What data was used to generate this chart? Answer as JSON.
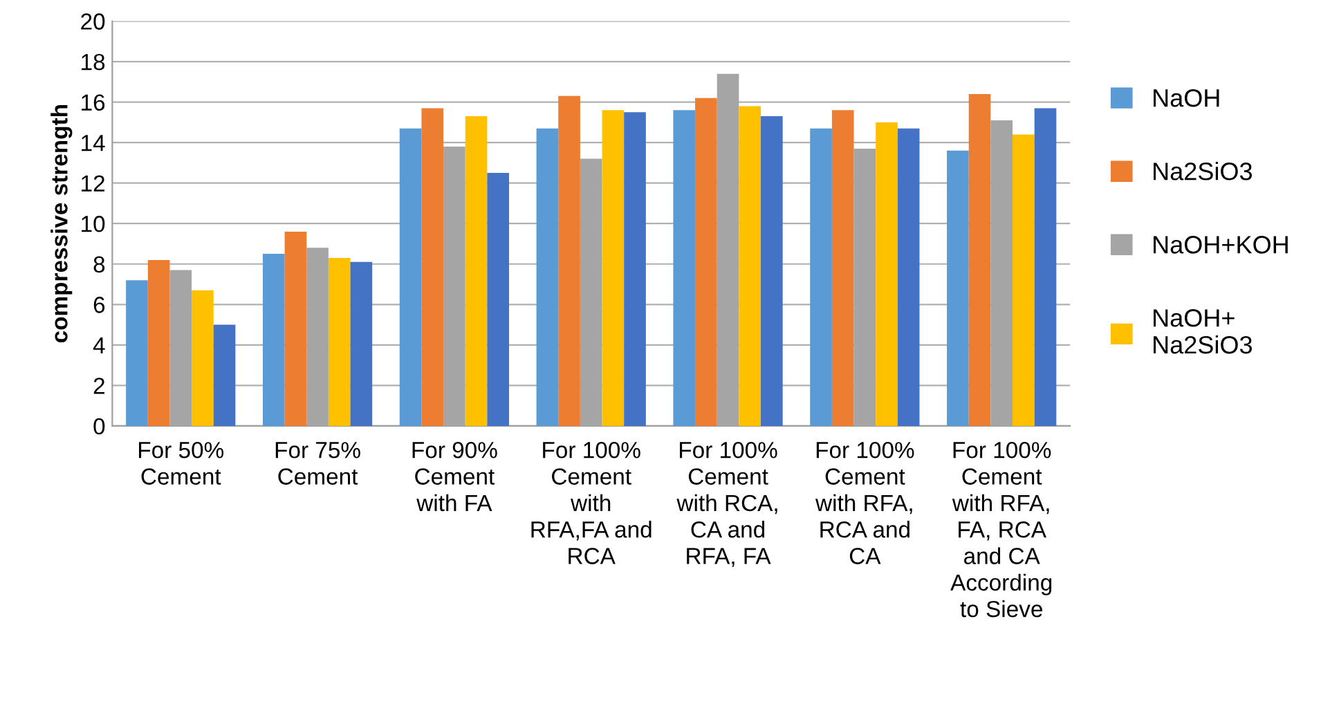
{
  "chart_data": {
    "type": "bar",
    "ylabel": "compressive strength",
    "categories": [
      "For 50%\nCement",
      "For 75%\nCement",
      "For 90%\nCement\nwith FA",
      "For 100%\nCement\nwith\nRFA,FA and\nRCA",
      "For 100%\nCement\nwith RCA,\nCA and\nRFA, FA",
      "For 100%\nCement\nwith RFA,\nRCA and\nCA",
      "For 100%\nCement\nwith RFA,\nFA, RCA\nand CA\nAccording\nto Sieve"
    ],
    "series": [
      {
        "name": "NaOH",
        "color": "#5b9bd5",
        "values": [
          7.2,
          8.5,
          14.7,
          14.7,
          15.6,
          14.7,
          13.6
        ]
      },
      {
        "name": "Na2SiO3",
        "color": "#ed7d31",
        "values": [
          8.2,
          9.6,
          15.7,
          16.3,
          16.2,
          15.6,
          16.4
        ]
      },
      {
        "name": "NaOH+KOH",
        "color": "#a5a5a5",
        "values": [
          7.7,
          8.8,
          13.8,
          13.2,
          17.4,
          13.7,
          15.1
        ]
      },
      {
        "name": "NaOH+\nNa2SiO3",
        "color": "#ffc000",
        "values": [
          6.7,
          8.3,
          15.3,
          15.6,
          15.8,
          15.0,
          14.4
        ]
      },
      {
        "color": "#4472c4",
        "values": [
          5.0,
          8.1,
          12.5,
          15.5,
          15.3,
          14.7,
          15.7
        ]
      }
    ],
    "ylim": [
      0,
      20
    ],
    "yticks": [
      0,
      2,
      4,
      6,
      8,
      10,
      12,
      14,
      16,
      18,
      20
    ],
    "grid": "y",
    "legend": "right"
  }
}
